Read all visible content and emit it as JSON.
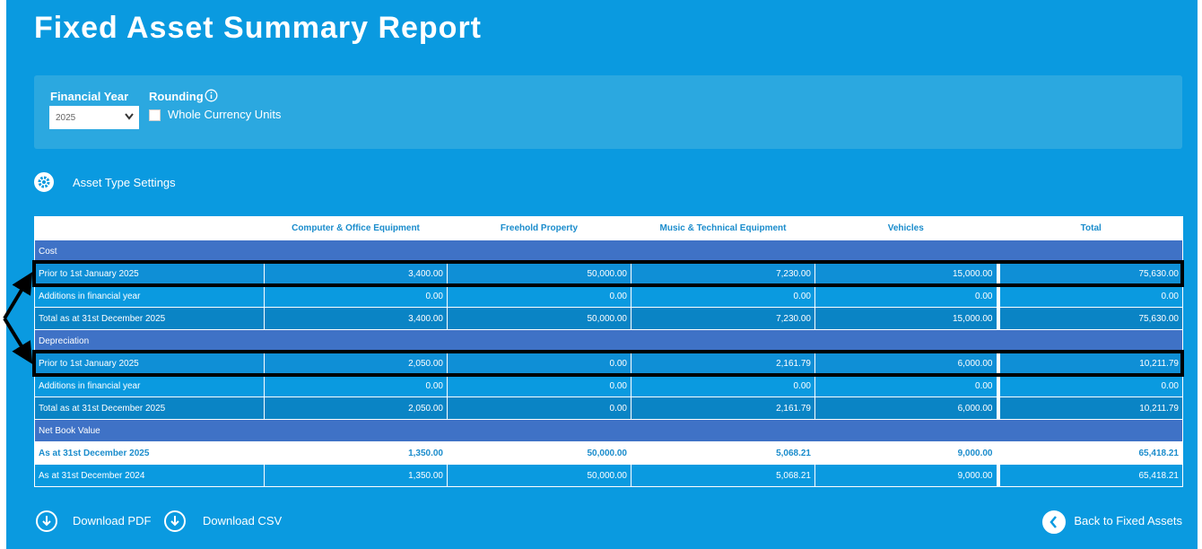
{
  "header": {
    "title": "Fixed Asset Summary Report"
  },
  "filters": {
    "financial_year_label": "Financial Year",
    "financial_year_value": "2025",
    "rounding_label": "Rounding",
    "whole_currency_units": "Whole Currency Units"
  },
  "settings_link": "Asset Type Settings",
  "table": {
    "columns": [
      "Computer & Office Equipment",
      "Freehold Property",
      "Music & Technical Equipment",
      "Vehicles",
      "Total"
    ],
    "sections": [
      {
        "title": "Cost",
        "rows": [
          {
            "label": "Prior to 1st January 2025",
            "cells": [
              "3,400.00",
              "50,000.00",
              "7,230.00",
              "15,000.00",
              "75,630.00"
            ]
          },
          {
            "label": "Additions in financial year",
            "cells": [
              "0.00",
              "0.00",
              "0.00",
              "0.00",
              "0.00"
            ]
          },
          {
            "label": "Total as at 31st December 2025",
            "cells": [
              "3,400.00",
              "50,000.00",
              "7,230.00",
              "15,000.00",
              "75,630.00"
            ]
          }
        ]
      },
      {
        "title": "Depreciation",
        "rows": [
          {
            "label": "Prior to 1st January 2025",
            "cells": [
              "2,050.00",
              "0.00",
              "2,161.79",
              "6,000.00",
              "10,211.79"
            ]
          },
          {
            "label": "Additions in financial year",
            "cells": [
              "0.00",
              "0.00",
              "0.00",
              "0.00",
              "0.00"
            ]
          },
          {
            "label": "Total as at 31st December 2025",
            "cells": [
              "2,050.00",
              "0.00",
              "2,161.79",
              "6,000.00",
              "10,211.79"
            ]
          }
        ]
      },
      {
        "title": "Net Book Value",
        "rows": [
          {
            "label": "As at 31st December 2025",
            "cells": [
              "1,350.00",
              "50,000.00",
              "5,068.21",
              "9,000.00",
              "65,418.21"
            ]
          },
          {
            "label": "As at 31st December 2024",
            "cells": [
              "1,350.00",
              "50,000.00",
              "5,068.21",
              "9,000.00",
              "65,418.21"
            ]
          }
        ]
      }
    ]
  },
  "footer": {
    "download_pdf": "Download PDF",
    "download_csv": "Download CSV",
    "back": "Back to Fixed Assets"
  }
}
